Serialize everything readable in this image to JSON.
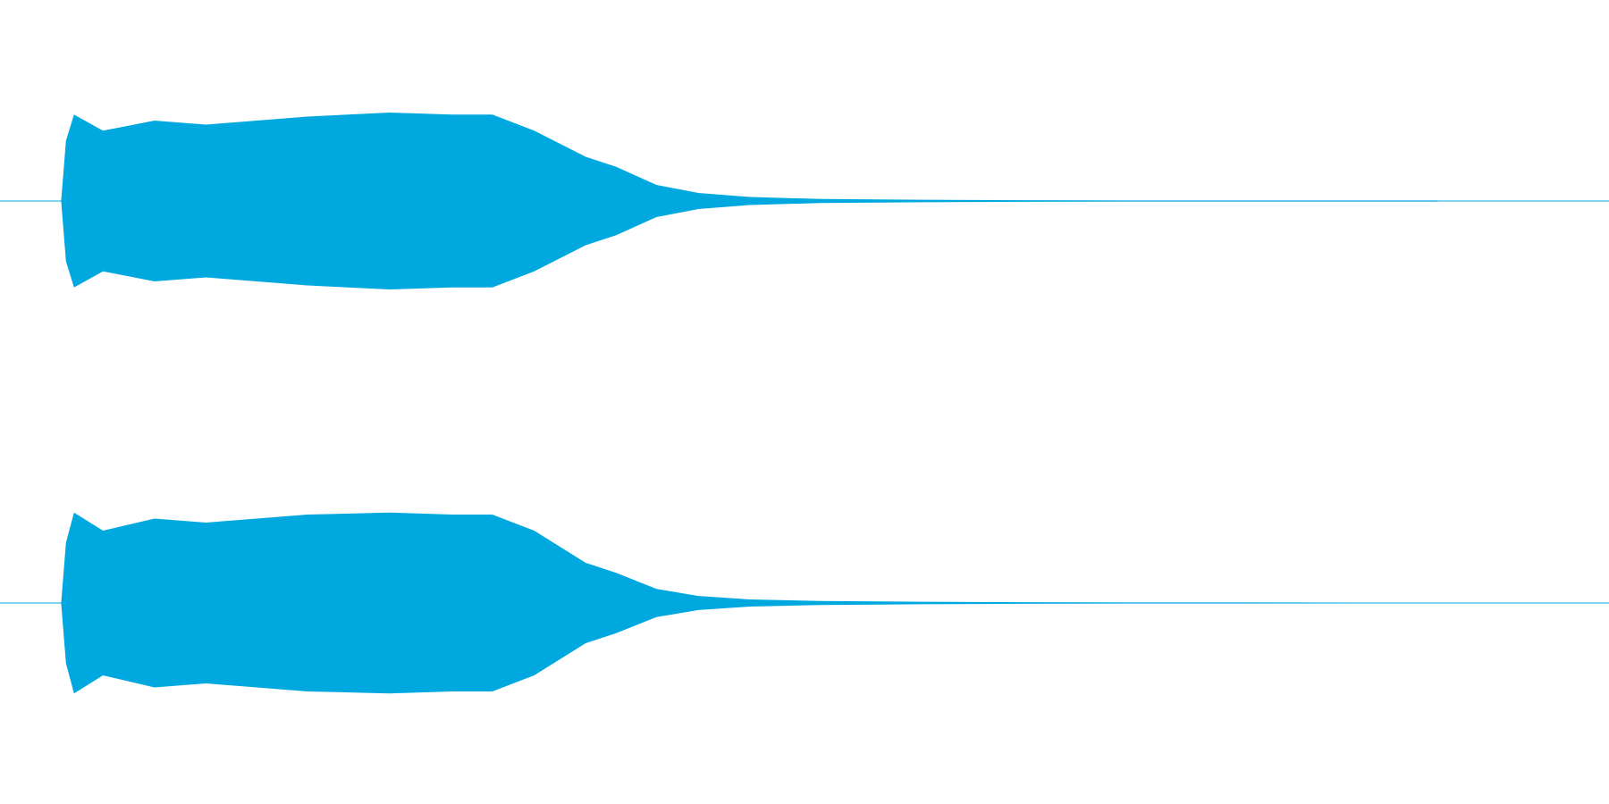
{
  "chart_data": {
    "type": "waveform",
    "color": "#00a8e0",
    "xlim": [
      0,
      1
    ],
    "ylim": [
      -1,
      1
    ],
    "x": [
      0.038,
      0.041,
      0.046,
      0.064,
      0.096,
      0.128,
      0.191,
      0.242,
      0.281,
      0.306,
      0.332,
      0.364,
      0.383,
      0.408,
      0.434,
      0.466,
      0.51,
      0.574,
      0.638,
      0.702,
      0.893,
      0.9
    ],
    "series": [
      {
        "values": [
          0,
          0.3,
          0.43,
          0.35,
          0.4,
          0.38,
          0.42,
          0.44,
          0.43,
          0.43,
          0.35,
          0.22,
          0.17,
          0.08,
          0.04,
          0.02,
          0.01,
          0.006,
          0.004,
          0.003,
          0.003,
          0
        ]
      },
      {
        "values": [
          0,
          0.3,
          0.45,
          0.36,
          0.42,
          0.4,
          0.44,
          0.45,
          0.44,
          0.44,
          0.36,
          0.2,
          0.15,
          0.07,
          0.035,
          0.018,
          0.01,
          0.006,
          0.004,
          0.003,
          0.002,
          0
        ]
      }
    ]
  }
}
